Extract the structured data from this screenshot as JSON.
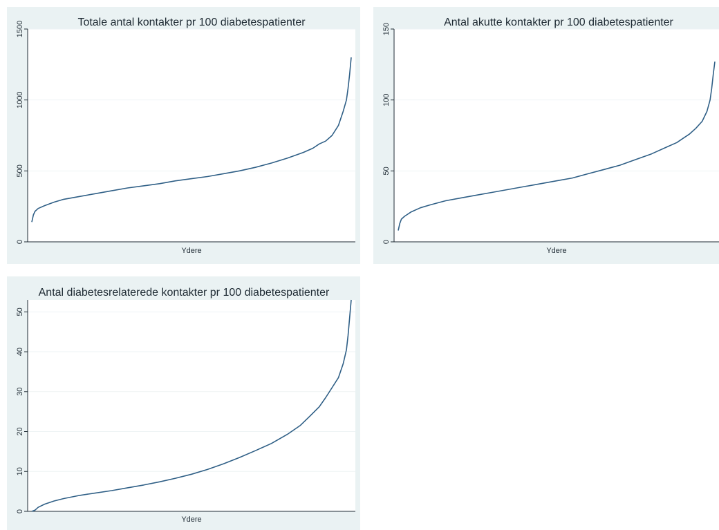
{
  "chart_data": [
    {
      "type": "line",
      "title": "Totale antal kontakter pr 100 diabetespatienter",
      "xlabel": "Ydere",
      "ylabel": "",
      "ylim": [
        0,
        1500
      ],
      "yticks": [
        "0",
        "500",
        "1000",
        "1500"
      ],
      "ytick_values": [
        0,
        500,
        1000,
        1500
      ],
      "grid": true,
      "series": [
        {
          "x": [
            0.0,
            0.005,
            0.01,
            0.02,
            0.04,
            0.07,
            0.1,
            0.15,
            0.2,
            0.25,
            0.3,
            0.35,
            0.4,
            0.45,
            0.5,
            0.55,
            0.6,
            0.65,
            0.7,
            0.75,
            0.8,
            0.85,
            0.88,
            0.9,
            0.92,
            0.94,
            0.96,
            0.975,
            0.985,
            0.99,
            0.995,
            1.0
          ],
          "values": [
            140,
            190,
            215,
            235,
            255,
            280,
            300,
            320,
            340,
            360,
            380,
            395,
            410,
            430,
            445,
            460,
            480,
            500,
            525,
            555,
            590,
            630,
            660,
            690,
            710,
            750,
            820,
            920,
            1000,
            1080,
            1180,
            1300
          ]
        }
      ]
    },
    {
      "type": "line",
      "title": "Antal akutte kontakter pr 100 diabetespatienter",
      "xlabel": "Ydere",
      "ylabel": "",
      "ylim": [
        0,
        150
      ],
      "yticks": [
        "0",
        "50",
        "100",
        "150"
      ],
      "ytick_values": [
        0,
        50,
        100,
        150
      ],
      "grid": true,
      "series": [
        {
          "x": [
            0.0,
            0.005,
            0.01,
            0.02,
            0.04,
            0.07,
            0.1,
            0.15,
            0.2,
            0.25,
            0.3,
            0.35,
            0.4,
            0.45,
            0.5,
            0.55,
            0.6,
            0.65,
            0.7,
            0.75,
            0.8,
            0.85,
            0.88,
            0.9,
            0.92,
            0.94,
            0.96,
            0.975,
            0.985,
            0.99,
            0.995,
            1.0
          ],
          "values": [
            8,
            13,
            16,
            18,
            21,
            24,
            26,
            29,
            31,
            33,
            35,
            37,
            39,
            41,
            43,
            45,
            48,
            51,
            54,
            58,
            62,
            67,
            70,
            73,
            76,
            80,
            85,
            92,
            100,
            108,
            118,
            127
          ]
        }
      ]
    },
    {
      "type": "line",
      "title": "Antal diabetesrelaterede kontakter pr 100 diabetespatienter",
      "xlabel": "Ydere",
      "ylabel": "",
      "ylim": [
        0,
        53
      ],
      "yticks": [
        "0",
        "10",
        "20",
        "30",
        "40",
        "50"
      ],
      "ytick_values": [
        0,
        10,
        20,
        30,
        40,
        50
      ],
      "grid": true,
      "series": [
        {
          "x": [
            0.0,
            0.01,
            0.02,
            0.04,
            0.07,
            0.1,
            0.15,
            0.2,
            0.25,
            0.3,
            0.35,
            0.4,
            0.45,
            0.5,
            0.55,
            0.6,
            0.65,
            0.7,
            0.75,
            0.8,
            0.84,
            0.87,
            0.9,
            0.92,
            0.94,
            0.96,
            0.975,
            0.985,
            0.99,
            0.995,
            1.0
          ],
          "values": [
            0,
            0.3,
            1.0,
            1.8,
            2.6,
            3.2,
            4.0,
            4.6,
            5.2,
            5.9,
            6.6,
            7.4,
            8.3,
            9.3,
            10.5,
            11.9,
            13.5,
            15.2,
            17.0,
            19.3,
            21.5,
            23.8,
            26.2,
            28.5,
            31.0,
            33.5,
            37.0,
            40.5,
            44.0,
            48.5,
            53.0
          ]
        }
      ]
    }
  ]
}
